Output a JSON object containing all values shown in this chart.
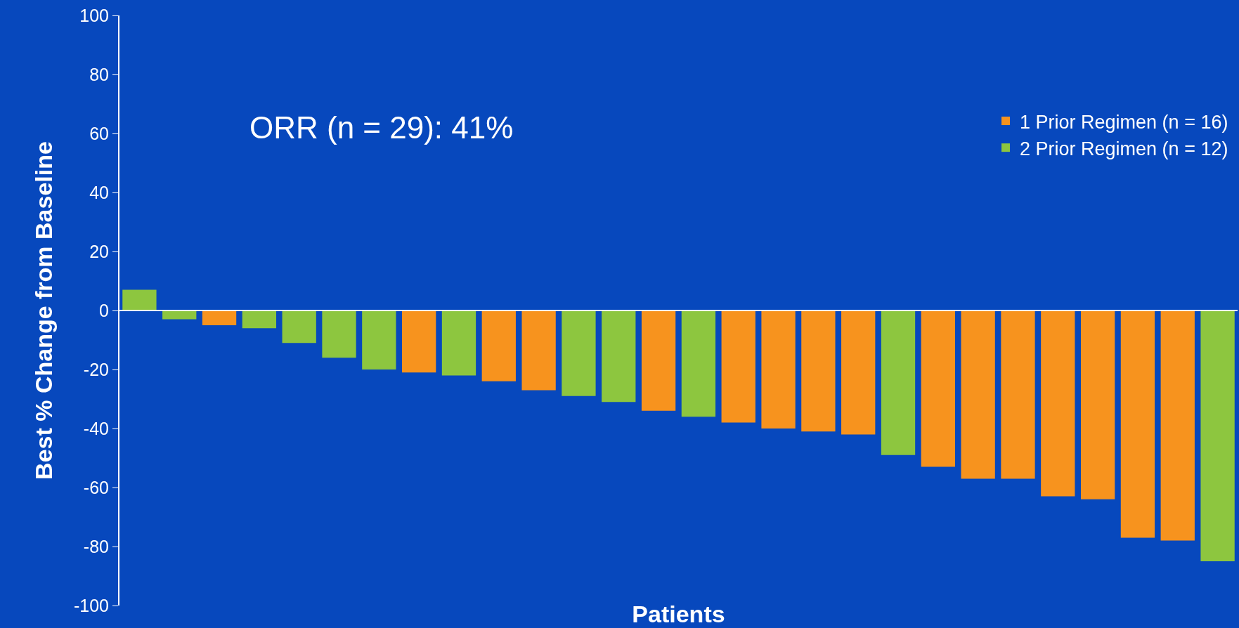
{
  "chart_data": {
    "type": "bar",
    "xlabel": "Patients",
    "ylabel": "Best % Change from Baseline",
    "annotations": [
      "ORR (n = 29): 41%"
    ],
    "categories": [
      null,
      null,
      null,
      null,
      null,
      null,
      null,
      null,
      null,
      null,
      null,
      null,
      null,
      null,
      null,
      null,
      null,
      null,
      null,
      null,
      null,
      null,
      null,
      null,
      null,
      null,
      null,
      null
    ],
    "series": [
      {
        "name": "1 Prior Regimen (n = 16)",
        "color": "#f7931e",
        "values": [
          null,
          null,
          -5,
          null,
          null,
          null,
          null,
          -21,
          null,
          -24,
          -27,
          null,
          null,
          -34,
          null,
          -38,
          -40,
          -41,
          -42,
          null,
          -53,
          -57,
          -57,
          -63,
          -64,
          -77,
          -78,
          null
        ]
      },
      {
        "name": "2 Prior Regimen (n = 12)",
        "color": "#8dc63f",
        "values": [
          7,
          -3,
          null,
          -6,
          -11,
          -16,
          -20,
          null,
          -22,
          null,
          null,
          -29,
          -31,
          null,
          -36,
          null,
          null,
          null,
          null,
          -49,
          null,
          null,
          null,
          null,
          null,
          null,
          null,
          -85
        ]
      }
    ],
    "ylim": [
      -100,
      100
    ],
    "yticks": [
      -100,
      -80,
      -60,
      -40,
      -20,
      0,
      20,
      40,
      60,
      80,
      100
    ],
    "ref_lines": [
      {
        "axis": "y",
        "value": 0,
        "color": "#ffffff"
      }
    ],
    "legend": "top right"
  }
}
